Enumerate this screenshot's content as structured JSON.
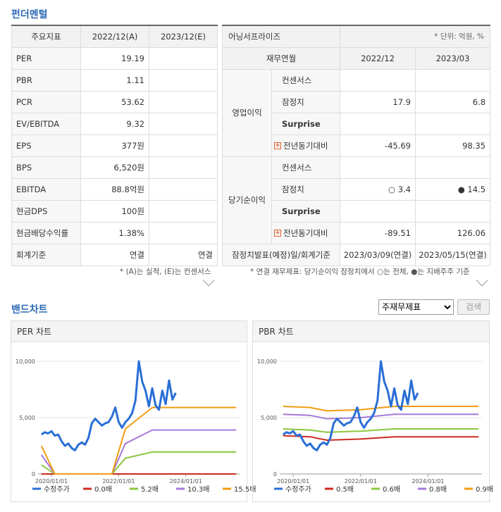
{
  "fundamental": {
    "title": "펀더멘털",
    "headers": [
      "주요지표",
      "2022/12(A)",
      "2023/12(E)"
    ],
    "rows": [
      {
        "label": "PER",
        "v1": "19.19",
        "v2": ""
      },
      {
        "label": "PBR",
        "v1": "1.11",
        "v2": ""
      },
      {
        "label": "PCR",
        "v1": "53.62",
        "v2": ""
      },
      {
        "label": "EV/EBITDA",
        "v1": "9.32",
        "v2": ""
      },
      {
        "label": "EPS",
        "v1": "377원",
        "v2": ""
      },
      {
        "label": "BPS",
        "v1": "6,520원",
        "v2": ""
      },
      {
        "label": "EBITDA",
        "v1": "88.8억원",
        "v2": ""
      },
      {
        "label": "현금DPS",
        "v1": "100원",
        "v2": ""
      },
      {
        "label": "현금배당수익률",
        "v1": "1.38%",
        "v2": ""
      },
      {
        "label": "회계기준",
        "v1": "연결",
        "v2": "연결"
      }
    ],
    "note": "* (A)는 실적, (E)는 컨센서스"
  },
  "earnings": {
    "title": "어닝서프라이즈",
    "unit": "* 단위: 억원, %",
    "headers": [
      "재무연월",
      "2022/12",
      "2023/03"
    ],
    "groups": [
      {
        "name": "영업이익",
        "rows": [
          {
            "label": "컨센서스",
            "v1": "",
            "v2": ""
          },
          {
            "label": "잠정치",
            "v1": "17.9",
            "v2": "6.8"
          },
          {
            "label": "Surprise",
            "v1": "",
            "v2": ""
          },
          {
            "label": "전년동기대비",
            "v1": "-45.69",
            "v2": "98.35"
          }
        ]
      },
      {
        "name": "당기순이익",
        "rows": [
          {
            "label": "컨센서스",
            "v1": "",
            "v2": ""
          },
          {
            "label": "잠정치",
            "v1": "○ 3.4",
            "v2": "● 14.5"
          },
          {
            "label": "Surprise",
            "v1": "",
            "v2": ""
          },
          {
            "label": "전년동기대비",
            "v1": "-89.51",
            "v2": "126.06"
          }
        ]
      }
    ],
    "footer_label": "잠정치발표(예정)일/회계기준",
    "footer_v1": "2023/03/09(연결)",
    "footer_v2": "2023/05/15(연결)",
    "note": "* 연결 재무제표: 당기순이익 잠정치에서 ○는 전체, ●는 지배주주 기준"
  },
  "band": {
    "title": "밴드차트",
    "select_value": "주재무제표",
    "search_label": "검색"
  },
  "chart_data": [
    {
      "type": "line",
      "title": "PER 차트",
      "ylim": [
        0,
        10000
      ],
      "yticks": [
        "0",
        "5,000",
        "10,000"
      ],
      "xticks": [
        "2020/01/01",
        "2022/01/01",
        "2024/01/01"
      ],
      "series": [
        {
          "name": "수정주가",
          "color": "#2a6fd6",
          "width": 3,
          "points": [
            [
              2019.7,
              3500
            ],
            [
              2019.8,
              3700
            ],
            [
              2019.9,
              3600
            ],
            [
              2020.0,
              3800
            ],
            [
              2020.1,
              3400
            ],
            [
              2020.2,
              3500
            ],
            [
              2020.3,
              2900
            ],
            [
              2020.4,
              2500
            ],
            [
              2020.5,
              2700
            ],
            [
              2020.6,
              2300
            ],
            [
              2020.7,
              2100
            ],
            [
              2020.8,
              2600
            ],
            [
              2020.9,
              2800
            ],
            [
              2021.0,
              2600
            ],
            [
              2021.1,
              3200
            ],
            [
              2021.2,
              4500
            ],
            [
              2021.3,
              4900
            ],
            [
              2021.4,
              4600
            ],
            [
              2021.5,
              4300
            ],
            [
              2021.6,
              4500
            ],
            [
              2021.7,
              4600
            ],
            [
              2021.8,
              5100
            ],
            [
              2021.9,
              5900
            ],
            [
              2022.0,
              4600
            ],
            [
              2022.1,
              4100
            ],
            [
              2022.2,
              4600
            ],
            [
              2022.3,
              4900
            ],
            [
              2022.4,
              5400
            ],
            [
              2022.5,
              6500
            ],
            [
              2022.6,
              10000
            ],
            [
              2022.7,
              8200
            ],
            [
              2022.8,
              7400
            ],
            [
              2022.9,
              6000
            ],
            [
              2023.0,
              7600
            ],
            [
              2023.1,
              6100
            ],
            [
              2023.2,
              5700
            ],
            [
              2023.3,
              7400
            ],
            [
              2023.4,
              6200
            ],
            [
              2023.5,
              8300
            ],
            [
              2023.6,
              6600
            ],
            [
              2023.7,
              7200
            ]
          ]
        },
        {
          "name": "0.0배",
          "color": "#cc2a1e",
          "width": 2,
          "points": [
            [
              2019.7,
              0
            ],
            [
              2025.5,
              0
            ]
          ]
        },
        {
          "name": "5.2배",
          "color": "#8cc63f",
          "width": 2,
          "points": [
            [
              2019.7,
              800
            ],
            [
              2020.1,
              0
            ],
            [
              2021.8,
              0
            ],
            [
              2022.2,
              1400
            ],
            [
              2023.0,
              1950
            ],
            [
              2025.5,
              1950
            ]
          ]
        },
        {
          "name": "10.3배",
          "color": "#a57ad9",
          "width": 2,
          "points": [
            [
              2019.7,
              1700
            ],
            [
              2020.1,
              0
            ],
            [
              2021.8,
              0
            ],
            [
              2022.2,
              2700
            ],
            [
              2023.0,
              3900
            ],
            [
              2025.5,
              3900
            ]
          ]
        },
        {
          "name": "15.5배",
          "color": "#f39c12",
          "width": 2,
          "points": [
            [
              2019.7,
              2500
            ],
            [
              2020.1,
              0
            ],
            [
              2021.8,
              0
            ],
            [
              2022.2,
              4000
            ],
            [
              2023.0,
              5900
            ],
            [
              2025.5,
              5900
            ]
          ]
        }
      ]
    },
    {
      "type": "line",
      "title": "PBR 차트",
      "ylim": [
        0,
        10000
      ],
      "yticks": [
        "0",
        "5,000",
        "10,000"
      ],
      "xticks": [
        "2020/01/01",
        "2022/01/01",
        "2024/01/01"
      ],
      "series": [
        {
          "name": "수정주가",
          "color": "#2a6fd6",
          "width": 3,
          "points": [
            [
              2019.7,
              3500
            ],
            [
              2019.8,
              3700
            ],
            [
              2019.9,
              3600
            ],
            [
              2020.0,
              3800
            ],
            [
              2020.1,
              3400
            ],
            [
              2020.2,
              3500
            ],
            [
              2020.3,
              2900
            ],
            [
              2020.4,
              2500
            ],
            [
              2020.5,
              2700
            ],
            [
              2020.6,
              2300
            ],
            [
              2020.7,
              2100
            ],
            [
              2020.8,
              2600
            ],
            [
              2020.9,
              2800
            ],
            [
              2021.0,
              2600
            ],
            [
              2021.1,
              3200
            ],
            [
              2021.2,
              4500
            ],
            [
              2021.3,
              4900
            ],
            [
              2021.4,
              4600
            ],
            [
              2021.5,
              4300
            ],
            [
              2021.6,
              4500
            ],
            [
              2021.7,
              4600
            ],
            [
              2021.8,
              5100
            ],
            [
              2021.9,
              5900
            ],
            [
              2022.0,
              4600
            ],
            [
              2022.1,
              4100
            ],
            [
              2022.2,
              4600
            ],
            [
              2022.3,
              4900
            ],
            [
              2022.4,
              5400
            ],
            [
              2022.5,
              6500
            ],
            [
              2022.6,
              10000
            ],
            [
              2022.7,
              8200
            ],
            [
              2022.8,
              7400
            ],
            [
              2022.9,
              6000
            ],
            [
              2023.0,
              7600
            ],
            [
              2023.1,
              6100
            ],
            [
              2023.2,
              5700
            ],
            [
              2023.3,
              7400
            ],
            [
              2023.4,
              6200
            ],
            [
              2023.5,
              8300
            ],
            [
              2023.6,
              6600
            ],
            [
              2023.7,
              7200
            ]
          ]
        },
        {
          "name": "0.5배",
          "color": "#cc2a1e",
          "width": 2,
          "points": [
            [
              2019.7,
              3400
            ],
            [
              2020.5,
              3300
            ],
            [
              2021.0,
              3000
            ],
            [
              2022.0,
              3100
            ],
            [
              2023.0,
              3300
            ],
            [
              2025.5,
              3300
            ]
          ]
        },
        {
          "name": "0.6배",
          "color": "#8cc63f",
          "width": 2,
          "points": [
            [
              2019.7,
              4000
            ],
            [
              2020.5,
              3900
            ],
            [
              2021.0,
              3700
            ],
            [
              2022.0,
              3800
            ],
            [
              2023.0,
              4000
            ],
            [
              2025.5,
              4000
            ]
          ]
        },
        {
          "name": "0.8배",
          "color": "#a57ad9",
          "width": 2,
          "points": [
            [
              2019.7,
              5300
            ],
            [
              2020.5,
              5200
            ],
            [
              2021.0,
              4900
            ],
            [
              2022.0,
              5000
            ],
            [
              2023.0,
              5300
            ],
            [
              2025.5,
              5300
            ]
          ]
        },
        {
          "name": "0.9배",
          "color": "#f39c12",
          "width": 2,
          "points": [
            [
              2019.7,
              6000
            ],
            [
              2020.5,
              5900
            ],
            [
              2021.0,
              5600
            ],
            [
              2022.0,
              5700
            ],
            [
              2023.0,
              6000
            ],
            [
              2025.5,
              6000
            ]
          ]
        }
      ]
    }
  ]
}
